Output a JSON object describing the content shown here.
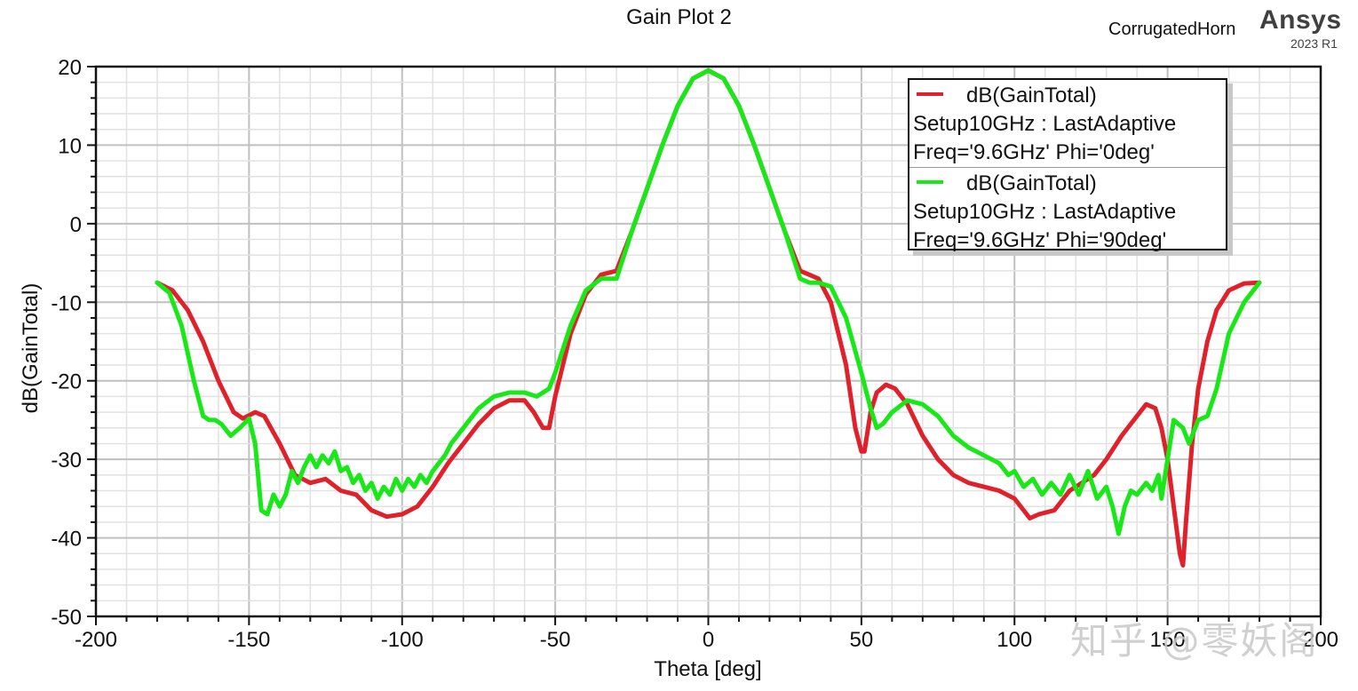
{
  "header": {
    "title": "Gain Plot 2",
    "project": "CorrugatedHorn",
    "brand": "Ansys",
    "version": "2023 R1"
  },
  "axes": {
    "xlabel": "Theta [deg]",
    "ylabel": "dB(GainTotal)",
    "xticks": [
      "-200",
      "-150",
      "-100",
      "-50",
      "0",
      "50",
      "100",
      "150",
      "200"
    ],
    "yticks": [
      "20",
      "10",
      "0",
      "-10",
      "-20",
      "-30",
      "-40",
      "-50"
    ]
  },
  "legend": {
    "entries": [
      {
        "line1": "dB(GainTotal)",
        "line2": "Setup10GHz : LastAdaptive",
        "line3": "Freq='9.6GHz' Phi='0deg'",
        "color": "#e0202a"
      },
      {
        "line1": "dB(GainTotal)",
        "line2": "Setup10GHz : LastAdaptive",
        "line3": "Freq='9.6GHz' Phi='90deg'",
        "color": "#18e818"
      }
    ]
  },
  "watermark": "知乎 @零妖阁",
  "chart_data": {
    "type": "line",
    "title": "Gain Plot 2",
    "xlabel": "Theta [deg]",
    "ylabel": "dB(GainTotal)",
    "xlim": [
      -200,
      200
    ],
    "ylim": [
      -50,
      20
    ],
    "xticks": [
      -200,
      -150,
      -100,
      -50,
      0,
      50,
      100,
      150,
      200
    ],
    "yticks": [
      -50,
      -40,
      -30,
      -20,
      -10,
      0,
      10,
      20
    ],
    "grid": true,
    "legend_position": "upper right",
    "series": [
      {
        "name": "dB(GainTotal) Setup10GHz : LastAdaptive Freq='9.6GHz' Phi='0deg'",
        "color": "#e0202a",
        "x": [
          -180,
          -175,
          -170,
          -165,
          -160,
          -155,
          -152,
          -148,
          -145,
          -140,
          -135,
          -130,
          -125,
          -120,
          -115,
          -110,
          -105,
          -100,
          -95,
          -90,
          -85,
          -80,
          -75,
          -70,
          -65,
          -60,
          -57,
          -54,
          -52,
          -50,
          -45,
          -40,
          -35,
          -30,
          -25,
          -20,
          -15,
          -10,
          -5,
          0,
          5,
          10,
          15,
          20,
          25,
          30,
          33,
          36,
          40,
          45,
          48,
          50,
          51,
          53,
          55,
          58,
          61,
          65,
          70,
          75,
          80,
          85,
          90,
          95,
          100,
          105,
          108,
          113,
          118,
          122,
          126,
          130,
          135,
          140,
          143,
          146,
          148,
          150,
          152,
          154,
          155,
          156,
          158,
          160,
          163,
          166,
          170,
          175,
          180
        ],
        "y": [
          -7.5,
          -8.5,
          -11,
          -15,
          -20,
          -24,
          -24.8,
          -24,
          -24.5,
          -28,
          -32,
          -33,
          -32.5,
          -34,
          -34.5,
          -36.5,
          -37.3,
          -37,
          -36,
          -33.5,
          -30.5,
          -28,
          -25.5,
          -23.5,
          -22.5,
          -22.5,
          -24,
          -26,
          -26,
          -22,
          -14,
          -9,
          -6.5,
          -6,
          -1,
          4.5,
          10,
          15,
          18.5,
          19.5,
          18.5,
          15,
          10,
          4.5,
          -1,
          -6,
          -6.5,
          -7,
          -10,
          -18,
          -26,
          -29,
          -29,
          -24,
          -21.5,
          -20.5,
          -21,
          -23,
          -27,
          -30,
          -32,
          -33,
          -33.5,
          -34,
          -35,
          -37.5,
          -37,
          -36.5,
          -34,
          -33,
          -32,
          -30,
          -27,
          -24.5,
          -23,
          -23.5,
          -26,
          -30,
          -36,
          -42,
          -43.5,
          -38,
          -28,
          -21,
          -15,
          -11,
          -8.5,
          -7.6,
          -7.5
        ]
      },
      {
        "name": "dB(GainTotal) Setup10GHz : LastAdaptive Freq='9.6GHz' Phi='90deg'",
        "color": "#18e818",
        "x": [
          -180,
          -176,
          -172,
          -168,
          -165,
          -163,
          -161,
          -159,
          -156,
          -153,
          -150,
          -148,
          -146,
          -144,
          -142,
          -140,
          -138,
          -136,
          -134,
          -132,
          -130,
          -128,
          -126,
          -124,
          -122,
          -120,
          -118,
          -116,
          -114,
          -112,
          -110,
          -108,
          -106,
          -104,
          -102,
          -100,
          -98,
          -96,
          -94,
          -92,
          -90,
          -88,
          -86,
          -84,
          -82,
          -80,
          -75,
          -70,
          -65,
          -60,
          -56,
          -52,
          -50,
          -45,
          -40,
          -35,
          -30,
          -25,
          -20,
          -15,
          -10,
          -5,
          0,
          5,
          10,
          15,
          20,
          25,
          30,
          33,
          36,
          40,
          45,
          50,
          53,
          55,
          57,
          60,
          65,
          70,
          75,
          80,
          85,
          90,
          95,
          98,
          100,
          103,
          106,
          109,
          112,
          115,
          118,
          121,
          124,
          127,
          130,
          132,
          134,
          136,
          138,
          140,
          143,
          145,
          147,
          148,
          150,
          152,
          155,
          157,
          160,
          163,
          166,
          170,
          175,
          180
        ],
        "y": [
          -7.5,
          -8.8,
          -13,
          -20,
          -24.5,
          -25,
          -25,
          -25.5,
          -27,
          -26,
          -24.8,
          -28,
          -36.5,
          -37,
          -34.5,
          -36,
          -34.5,
          -31.5,
          -33,
          -31,
          -29.5,
          -31,
          -29.5,
          -30.5,
          -29,
          -31.5,
          -31,
          -33,
          -32,
          -34,
          -33,
          -35,
          -33.5,
          -34.5,
          -32.5,
          -34,
          -32.5,
          -33.5,
          -32,
          -33,
          -31.5,
          -30.5,
          -29.5,
          -28,
          -27,
          -26,
          -23.5,
          -22,
          -21.5,
          -21.5,
          -22,
          -21,
          -19,
          -13,
          -8.5,
          -7,
          -7,
          -1,
          4.5,
          10,
          15,
          18.5,
          19.5,
          18.5,
          15,
          10,
          4.5,
          -1,
          -7,
          -7.5,
          -7.5,
          -8,
          -12,
          -19,
          -23.5,
          -26,
          -25.5,
          -24,
          -22.5,
          -23,
          -24.5,
          -27,
          -28.5,
          -29.5,
          -30.5,
          -32,
          -31.5,
          -33.5,
          -32.5,
          -34.5,
          -33,
          -34.5,
          -32,
          -34.5,
          -31.5,
          -35,
          -33.5,
          -36,
          -39.5,
          -36,
          -34,
          -34.5,
          -33,
          -34,
          -32,
          -35,
          -30,
          -25,
          -26,
          -28,
          -25,
          -24.5,
          -21,
          -14,
          -10,
          -7.5
        ]
      }
    ]
  }
}
